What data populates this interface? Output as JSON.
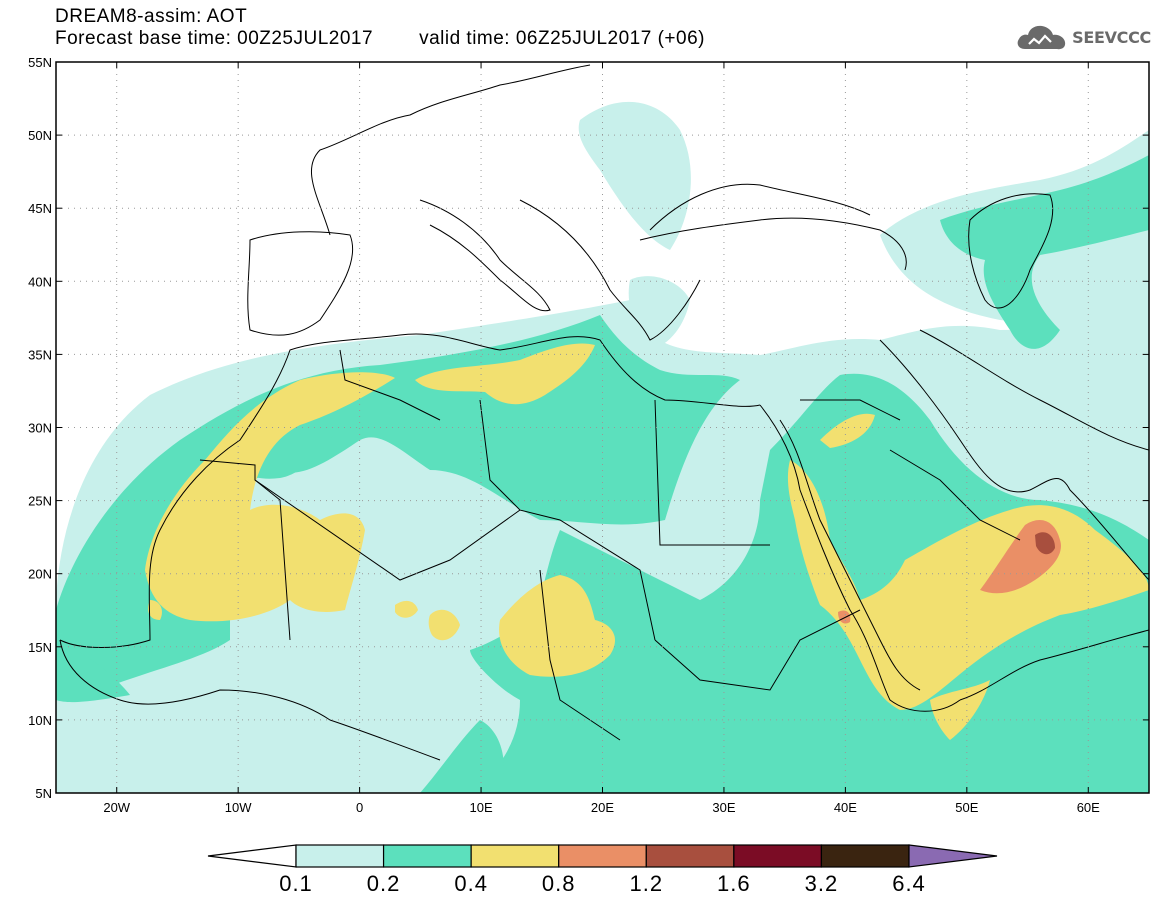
{
  "header": {
    "title": "DREAM8-assim: AOT",
    "base_time": "Forecast base time: 00Z25JUL2017",
    "valid_time": "valid time: 06Z25JUL2017 (+06)"
  },
  "logo": {
    "text": "SEEVCCC",
    "icon": "cloud-icon",
    "color": "#6a6a6a"
  },
  "map": {
    "lat_labels": [
      "55N",
      "50N",
      "45N",
      "40N",
      "35N",
      "30N",
      "25N",
      "20N",
      "15N",
      "10N",
      "5N"
    ],
    "lat_values": [
      55,
      50,
      45,
      40,
      35,
      30,
      25,
      20,
      15,
      10,
      5
    ],
    "lon_labels": [
      "20W",
      "10W",
      "0",
      "10E",
      "20E",
      "30E",
      "40E",
      "50E",
      "60E"
    ],
    "lon_values": [
      -20,
      -10,
      0,
      10,
      20,
      30,
      40,
      50,
      60
    ],
    "lon_range": [
      -25,
      65
    ],
    "lat_range": [
      5,
      55
    ],
    "grid": "dotted"
  },
  "colorbar": {
    "labels": [
      "0.1",
      "0.2",
      "0.4",
      "0.8",
      "1.2",
      "1.6",
      "3.2",
      "6.4"
    ],
    "colors": [
      "#c8f0eb",
      "#5ce0bd",
      "#f2e070",
      "#ea8f66",
      "#a84f3e",
      "#7b0c25",
      "#3a2410",
      "#8a6ab2"
    ]
  }
}
